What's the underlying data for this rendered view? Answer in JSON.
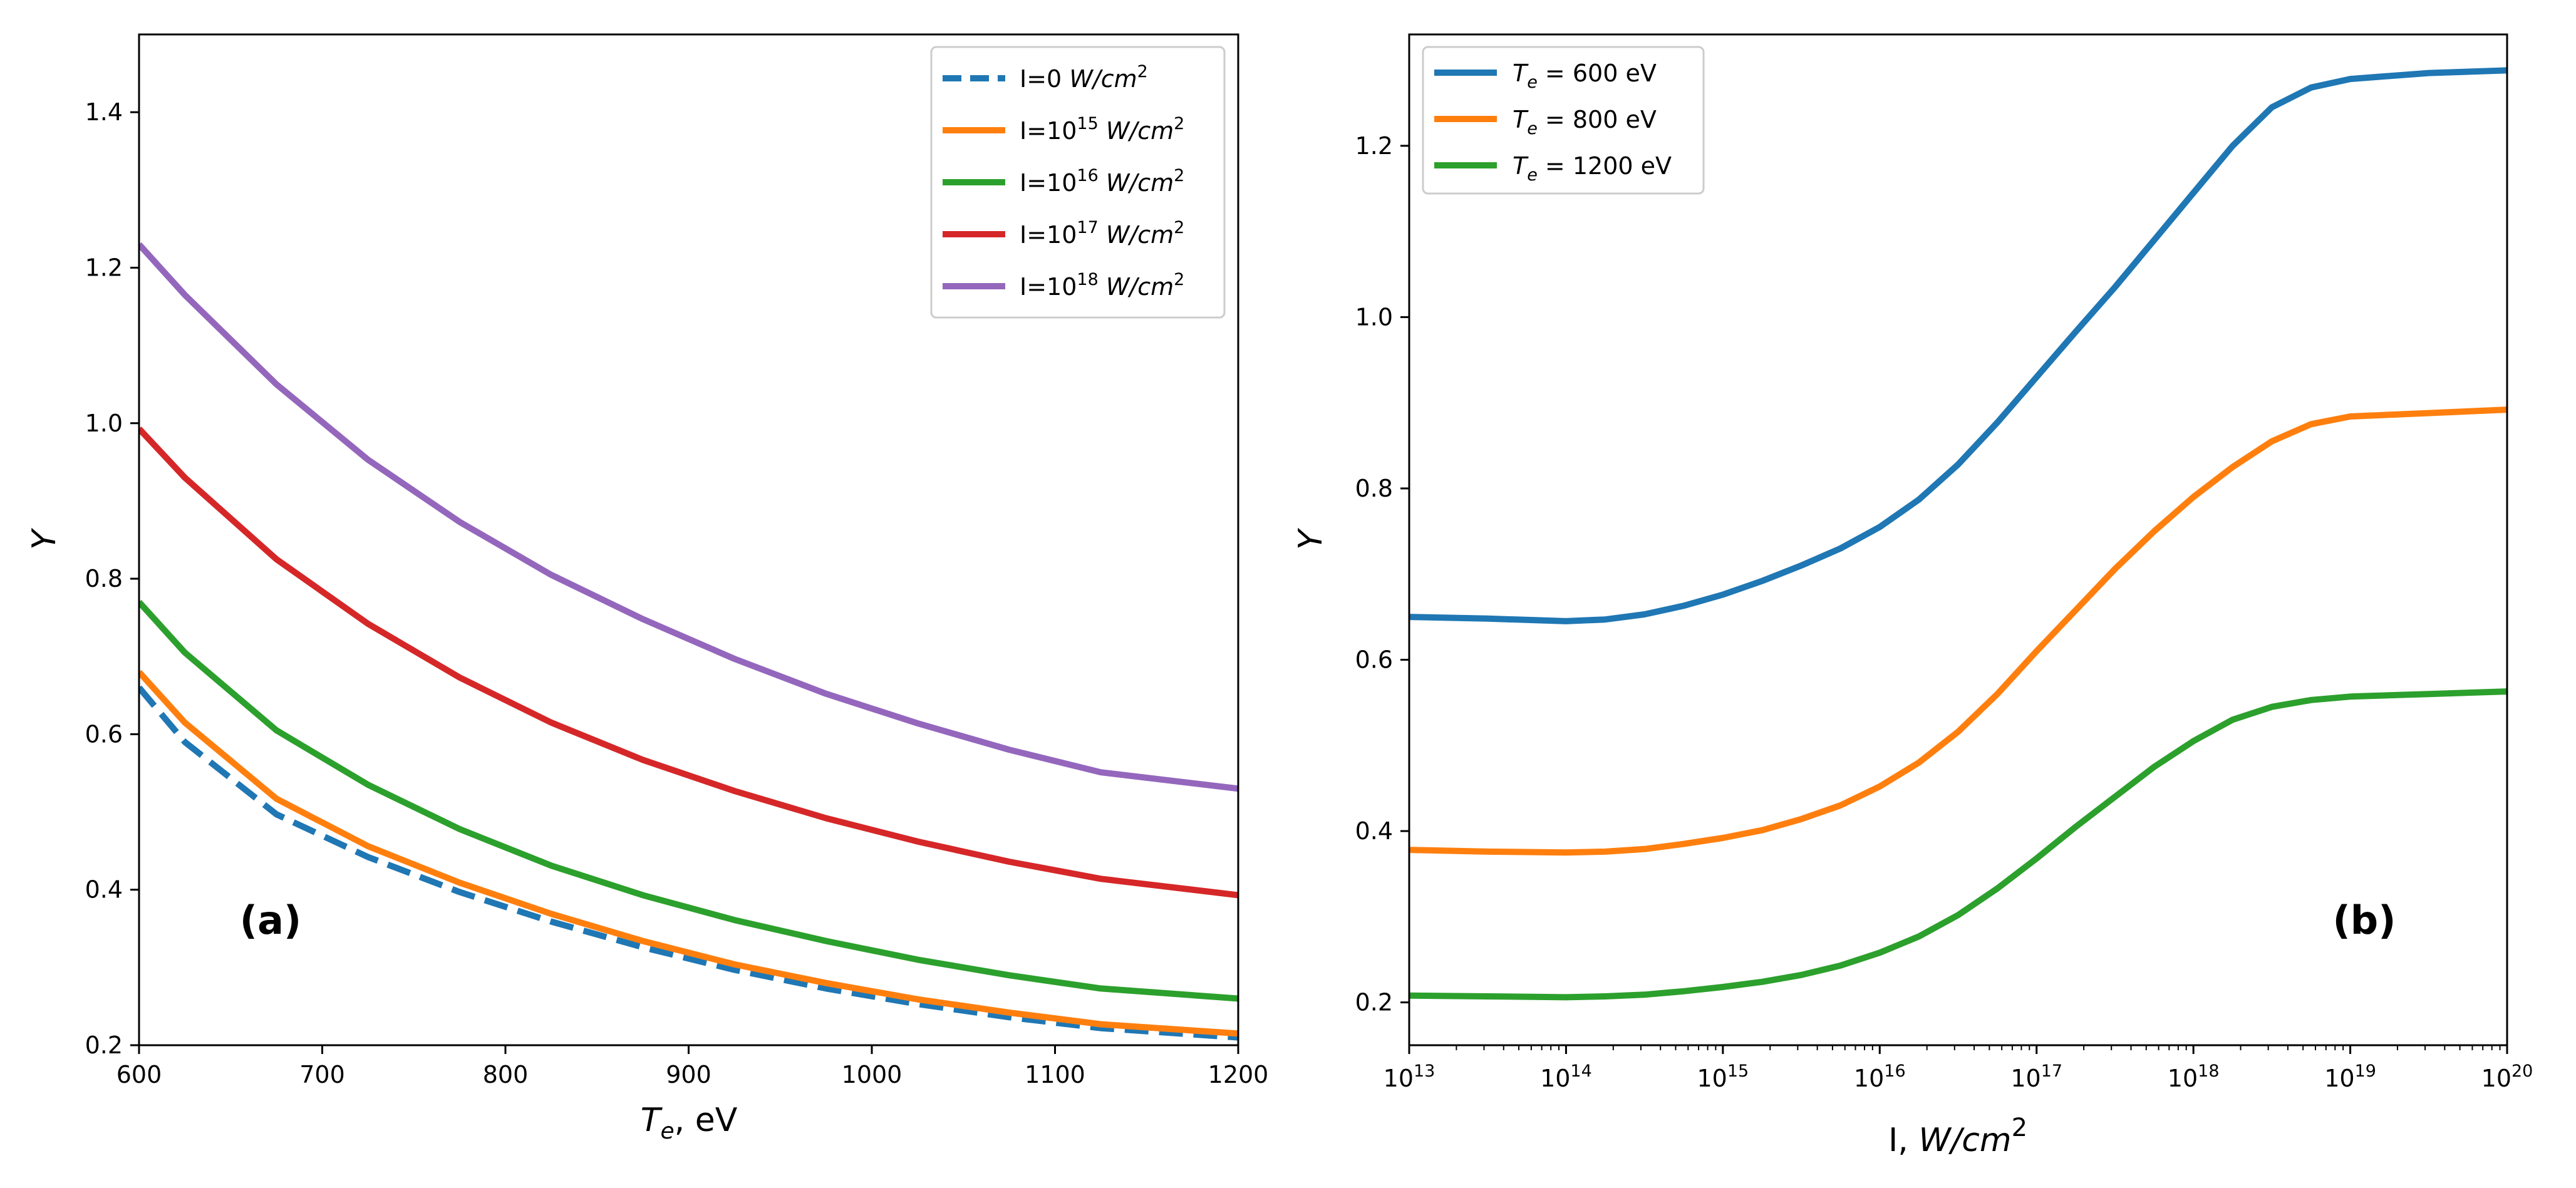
{
  "chart_data": [
    {
      "type": "line",
      "panel_label": "(a)",
      "xlabel": "T_e, eV",
      "xlabel_parts": {
        "symbol": "T",
        "sub": "e",
        "unit": ", eV"
      },
      "ylabel": "Y",
      "xlim": [
        600,
        1200
      ],
      "ylim": [
        0.2,
        1.5
      ],
      "x_scale": "linear",
      "xticks": [
        600,
        700,
        800,
        900,
        1000,
        1100,
        1200
      ],
      "xtick_labels": [
        "600",
        "700",
        "800",
        "900",
        "1000",
        "1100",
        "1200"
      ],
      "yticks": [
        0.2,
        0.4,
        0.6,
        0.8,
        1.0,
        1.2,
        1.4
      ],
      "ytick_labels": [
        "0.2",
        "0.4",
        "0.6",
        "0.8",
        "1.0",
        "1.2",
        "1.4"
      ],
      "legend_position": "top-right",
      "x": [
        600,
        625,
        675,
        725,
        775,
        825,
        875,
        925,
        975,
        1025,
        1075,
        1125,
        1200
      ],
      "series": [
        {
          "name": "I=0 W/cm^2",
          "label_prefix": "I=0 ",
          "label_exp": "",
          "color": "#1f77b4",
          "dashed": true,
          "values": [
            0.66,
            0.59,
            0.497,
            0.442,
            0.397,
            0.359,
            0.326,
            0.297,
            0.273,
            0.253,
            0.236,
            0.222,
            0.21
          ]
        },
        {
          "name": "I=10^15 W/cm^2",
          "label_prefix": "I=10",
          "label_exp": "15",
          "color": "#ff7f0e",
          "dashed": false,
          "values": [
            0.68,
            0.615,
            0.517,
            0.456,
            0.409,
            0.369,
            0.334,
            0.304,
            0.28,
            0.259,
            0.242,
            0.227,
            0.215
          ]
        },
        {
          "name": "I=10^16 W/cm^2",
          "label_prefix": "I=10",
          "label_exp": "16",
          "color": "#2ca02c",
          "dashed": false,
          "values": [
            0.77,
            0.705,
            0.605,
            0.535,
            0.478,
            0.431,
            0.393,
            0.361,
            0.334,
            0.31,
            0.29,
            0.273,
            0.26
          ]
        },
        {
          "name": "I=10^17 W/cm^2",
          "label_prefix": "I=10",
          "label_exp": "17",
          "color": "#d62728",
          "dashed": false,
          "values": [
            0.993,
            0.93,
            0.825,
            0.742,
            0.673,
            0.615,
            0.567,
            0.527,
            0.492,
            0.462,
            0.436,
            0.414,
            0.393
          ]
        },
        {
          "name": "I=10^18 W/cm^2",
          "label_prefix": "I=10",
          "label_exp": "18",
          "color": "#9467bd",
          "dashed": false,
          "values": [
            1.23,
            1.165,
            1.05,
            0.953,
            0.873,
            0.805,
            0.748,
            0.697,
            0.652,
            0.614,
            0.58,
            0.551,
            0.53
          ]
        }
      ]
    },
    {
      "type": "line",
      "panel_label": "(b)",
      "xlabel": "I, W/cm^2",
      "ylabel": "Y",
      "x_scale": "log",
      "xlim_log10": [
        13,
        20
      ],
      "ylim": [
        0.15,
        1.33
      ],
      "xticks_log10": [
        13,
        14,
        15,
        16,
        17,
        18,
        19,
        20
      ],
      "xtick_base": "10",
      "xtick_exponents": [
        "13",
        "14",
        "15",
        "16",
        "17",
        "18",
        "19",
        "20"
      ],
      "yticks": [
        0.2,
        0.4,
        0.6,
        0.8,
        1.0,
        1.2
      ],
      "ytick_labels": [
        "0.2",
        "0.4",
        "0.6",
        "0.8",
        "1.0",
        "1.2"
      ],
      "legend_position": "top-left",
      "x_log10": [
        13,
        13.5,
        14,
        14.25,
        14.5,
        14.75,
        15,
        15.25,
        15.5,
        15.75,
        16,
        16.25,
        16.5,
        16.75,
        17,
        17.25,
        17.5,
        17.75,
        18,
        18.25,
        18.5,
        18.75,
        19,
        19.5,
        20
      ],
      "series": [
        {
          "name": "T_e = 600 eV",
          "label_value": "600 eV",
          "color": "#1f77b4",
          "values": [
            0.65,
            0.648,
            0.645,
            0.647,
            0.653,
            0.663,
            0.676,
            0.692,
            0.71,
            0.73,
            0.755,
            0.787,
            0.828,
            0.877,
            0.93,
            0.983,
            1.035,
            1.09,
            1.145,
            1.2,
            1.245,
            1.268,
            1.278,
            1.285,
            1.288
          ]
        },
        {
          "name": "T_e = 800 eV",
          "label_value": "800 eV",
          "color": "#ff7f0e",
          "values": [
            0.378,
            0.376,
            0.375,
            0.376,
            0.379,
            0.385,
            0.392,
            0.401,
            0.414,
            0.43,
            0.452,
            0.48,
            0.516,
            0.56,
            0.61,
            0.658,
            0.706,
            0.75,
            0.79,
            0.825,
            0.855,
            0.875,
            0.884,
            0.888,
            0.892
          ]
        },
        {
          "name": "T_e = 1200 eV",
          "label_value": "1200 eV",
          "color": "#2ca02c",
          "values": [
            0.208,
            0.207,
            0.206,
            0.207,
            0.209,
            0.213,
            0.218,
            0.224,
            0.232,
            0.243,
            0.258,
            0.277,
            0.302,
            0.333,
            0.368,
            0.405,
            0.44,
            0.475,
            0.505,
            0.53,
            0.545,
            0.553,
            0.557,
            0.56,
            0.563
          ]
        }
      ]
    }
  ]
}
